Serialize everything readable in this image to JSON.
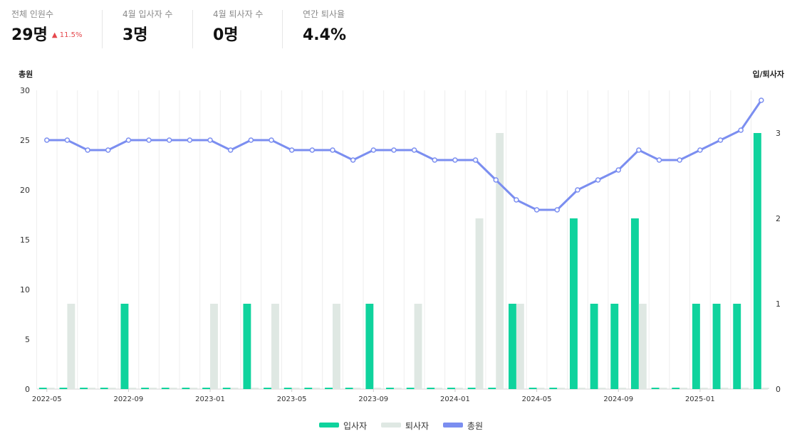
{
  "stats": [
    {
      "label": "전체 인원수",
      "value": "29명",
      "change": "▲ 11.5%"
    },
    {
      "label": "4월 입사자 수",
      "value": "3명"
    },
    {
      "label": "4월 퇴사자 수",
      "value": "0명"
    },
    {
      "label": "연간 퇴사율",
      "value": "4.4%"
    }
  ],
  "colors": {
    "hires": "#0fd39d",
    "exits": "#dfe8e3",
    "total": "#7b8ef0",
    "grid": "#eeeeee",
    "positive": "#e5484d"
  },
  "chart_data": {
    "type": "bar+line",
    "y_left_label": "총원",
    "y_right_label": "입/퇴사자",
    "y_left_ticks": [
      "0",
      "5",
      "10",
      "15",
      "20",
      "25",
      "30"
    ],
    "y_right_ticks": [
      "0",
      "1",
      "2",
      "3"
    ],
    "ylim_left": [
      0,
      30
    ],
    "ylim_right": [
      0,
      3.5
    ],
    "categories": [
      "2022-05",
      "2022-06",
      "2022-07",
      "2022-08",
      "2022-09",
      "2022-10",
      "2022-11",
      "2022-12",
      "2023-01",
      "2023-02",
      "2023-03",
      "2023-04",
      "2023-05",
      "2023-06",
      "2023-07",
      "2023-08",
      "2023-09",
      "2023-10",
      "2023-11",
      "2023-12",
      "2024-01",
      "2024-02",
      "2024-03",
      "2024-04",
      "2024-05",
      "2024-06",
      "2024-07",
      "2024-08",
      "2024-09",
      "2024-10",
      "2024-11",
      "2024-12",
      "2025-01",
      "2025-02",
      "2025-03",
      "2025-04"
    ],
    "x_tick_labels": [
      "2022-05",
      "2022-09",
      "2023-01",
      "2023-05",
      "2023-09",
      "2024-01",
      "2024-05",
      "2024-09",
      "2025-01"
    ],
    "series": [
      {
        "name": "입사자",
        "axis": "right",
        "kind": "bar",
        "values": [
          0,
          0,
          0,
          0,
          1,
          0,
          0,
          0,
          0,
          0,
          1,
          0,
          0,
          0,
          0,
          0,
          1,
          0,
          0,
          0,
          0,
          0,
          0,
          1,
          0,
          0,
          2,
          1,
          1,
          2,
          0,
          0,
          1,
          1,
          1,
          3
        ]
      },
      {
        "name": "퇴사자",
        "axis": "right",
        "kind": "bar",
        "values": [
          0,
          1,
          0,
          0,
          0,
          0,
          0,
          0,
          1,
          0,
          0,
          1,
          0,
          0,
          1,
          0,
          0,
          0,
          1,
          0,
          0,
          2,
          3,
          1,
          0,
          0,
          0,
          0,
          0,
          1,
          0,
          0,
          0,
          0,
          0,
          0
        ]
      },
      {
        "name": "총원",
        "axis": "left",
        "kind": "line",
        "values": [
          25,
          25,
          24,
          24,
          25,
          25,
          25,
          25,
          25,
          24,
          25,
          25,
          24,
          24,
          24,
          23,
          24,
          24,
          24,
          23,
          23,
          23,
          21,
          19,
          18,
          18,
          20,
          21,
          22,
          24,
          23,
          23,
          24,
          25,
          26,
          29
        ]
      }
    ]
  }
}
